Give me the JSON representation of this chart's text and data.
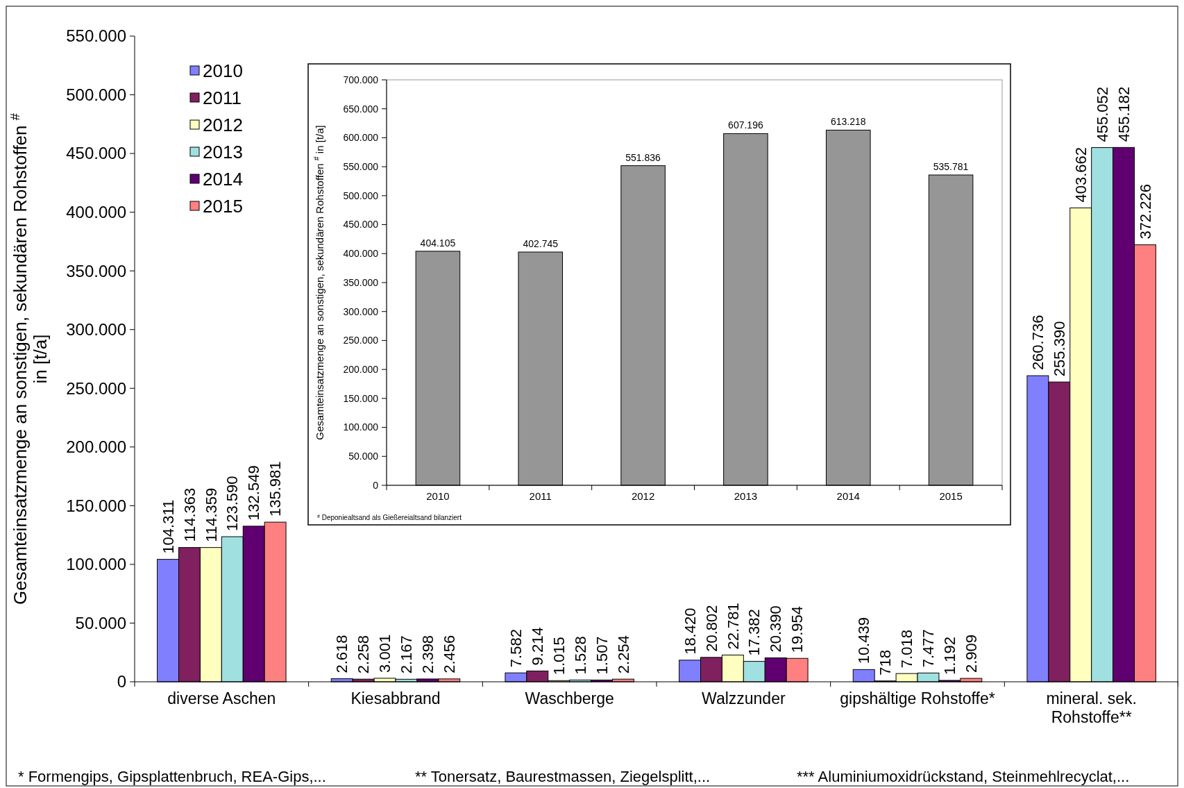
{
  "chart_data": [
    {
      "type": "bar",
      "ylabel": "Gesamteinsatzmenge an sonstigen, sekundären Rohstoffen $^{#}$ in [t/a]",
      "categories": [
        "diverse Aschen",
        "Kiesabbrand",
        "Waschberge",
        "Walzzunder",
        "gipshältige Rohstoffe*",
        "mineral. sek. Rohstoffe**"
      ],
      "series": [
        {
          "name": "2010",
          "color": "#8080ff",
          "values": [
            104311,
            2618,
            7582,
            18420,
            10439,
            260736
          ],
          "value_labels": [
            "104.311",
            "2.618",
            "7.582",
            "18.420",
            "10.439",
            "260.736"
          ]
        },
        {
          "name": "2011",
          "color": "#80205f",
          "values": [
            114363,
            2258,
            9214,
            20802,
            718,
            255390
          ],
          "value_labels": [
            "114.363",
            "2.258",
            "9.214",
            "20.802",
            "718",
            "255.390"
          ]
        },
        {
          "name": "2012",
          "color": "#ffffc0",
          "values": [
            114359,
            3001,
            1015,
            22781,
            7018,
            403662
          ],
          "value_labels": [
            "114.359",
            "3.001",
            "1.015",
            "22.781",
            "7.018",
            "403.662"
          ]
        },
        {
          "name": "2013",
          "color": "#a0e0e0",
          "values": [
            123590,
            2167,
            1528,
            17382,
            7477,
            455052
          ],
          "value_labels": [
            "123.590",
            "2.167",
            "1.528",
            "17.382",
            "7.477",
            "455.052"
          ]
        },
        {
          "name": "2014",
          "color": "#600070",
          "values": [
            132549,
            2398,
            1507,
            20390,
            1192,
            455182
          ],
          "value_labels": [
            "132.549",
            "2.398",
            "1.507",
            "20.390",
            "1.192",
            "455.182"
          ]
        },
        {
          "name": "2015",
          "color": "#ff8080",
          "values": [
            135981,
            2456,
            2254,
            19954,
            2909,
            372226
          ],
          "value_labels": [
            "135.981",
            "2.456",
            "2.254",
            "19.954",
            "2.909",
            "372.226"
          ]
        }
      ],
      "ylim": [
        0,
        550000
      ],
      "yticks": [
        {
          "value": 0,
          "label": "0"
        },
        {
          "value": 50000,
          "label": "50.000"
        },
        {
          "value": 100000,
          "label": "100.000"
        },
        {
          "value": 150000,
          "label": "150.000"
        },
        {
          "value": 200000,
          "label": "200.000"
        },
        {
          "value": 250000,
          "label": "250.000"
        },
        {
          "value": 300000,
          "label": "300.000"
        },
        {
          "value": 350000,
          "label": "350.000"
        },
        {
          "value": 400000,
          "label": "400.000"
        },
        {
          "value": 450000,
          "label": "450.000"
        },
        {
          "value": 500000,
          "label": "500.000"
        },
        {
          "value": 550000,
          "label": "550.000"
        }
      ],
      "legend": "top left",
      "annotations": [
        "*  Formengips,  Gipsplattenbruch, REA-Gips,...",
        "**  Tonersatz, Baurestmassen, Ziegelsplitt,...",
        "***  Aluminiumoxidrückstand, Steinmehlrecyclat,..."
      ]
    },
    {
      "type": "bar",
      "ylabel": "Gesamteinsatzmenge an sonstigen, sekundären Rohstoffen $^{#}$ in [t/a]",
      "categories": [
        "2010",
        "2011",
        "2012",
        "2013",
        "2014",
        "2015"
      ],
      "values": [
        404105,
        402745,
        551836,
        607196,
        613218,
        535781
      ],
      "color": "#969696",
      "value_labels": [
        "404.105",
        "402.745",
        "551.836",
        "607.196",
        "613.218",
        "535.781"
      ],
      "ylim": [
        0,
        700000
      ],
      "yticks": [
        {
          "value": 0,
          "label": "0"
        },
        {
          "value": 50000,
          "label": "50.000"
        },
        {
          "value": 100000,
          "label": "100.000"
        },
        {
          "value": 150000,
          "label": "150.000"
        },
        {
          "value": 200000,
          "label": "200.000"
        },
        {
          "value": 250000,
          "label": "250.000"
        },
        {
          "value": 300000,
          "label": "300.000"
        },
        {
          "value": 350000,
          "label": "350.000"
        },
        {
          "value": 400000,
          "label": "400.000"
        },
        {
          "value": 450000,
          "label": "450.000"
        },
        {
          "value": 500000,
          "label": "500.000"
        },
        {
          "value": 550000,
          "label": "550.000"
        },
        {
          "value": 600000,
          "label": "600.000"
        },
        {
          "value": 650000,
          "label": "650.000"
        },
        {
          "value": 700000,
          "label": "700.000"
        }
      ],
      "annotations": [
        "$^{#}$ Deponiealtsand als Gießereialtsand bilanziert"
      ]
    }
  ]
}
